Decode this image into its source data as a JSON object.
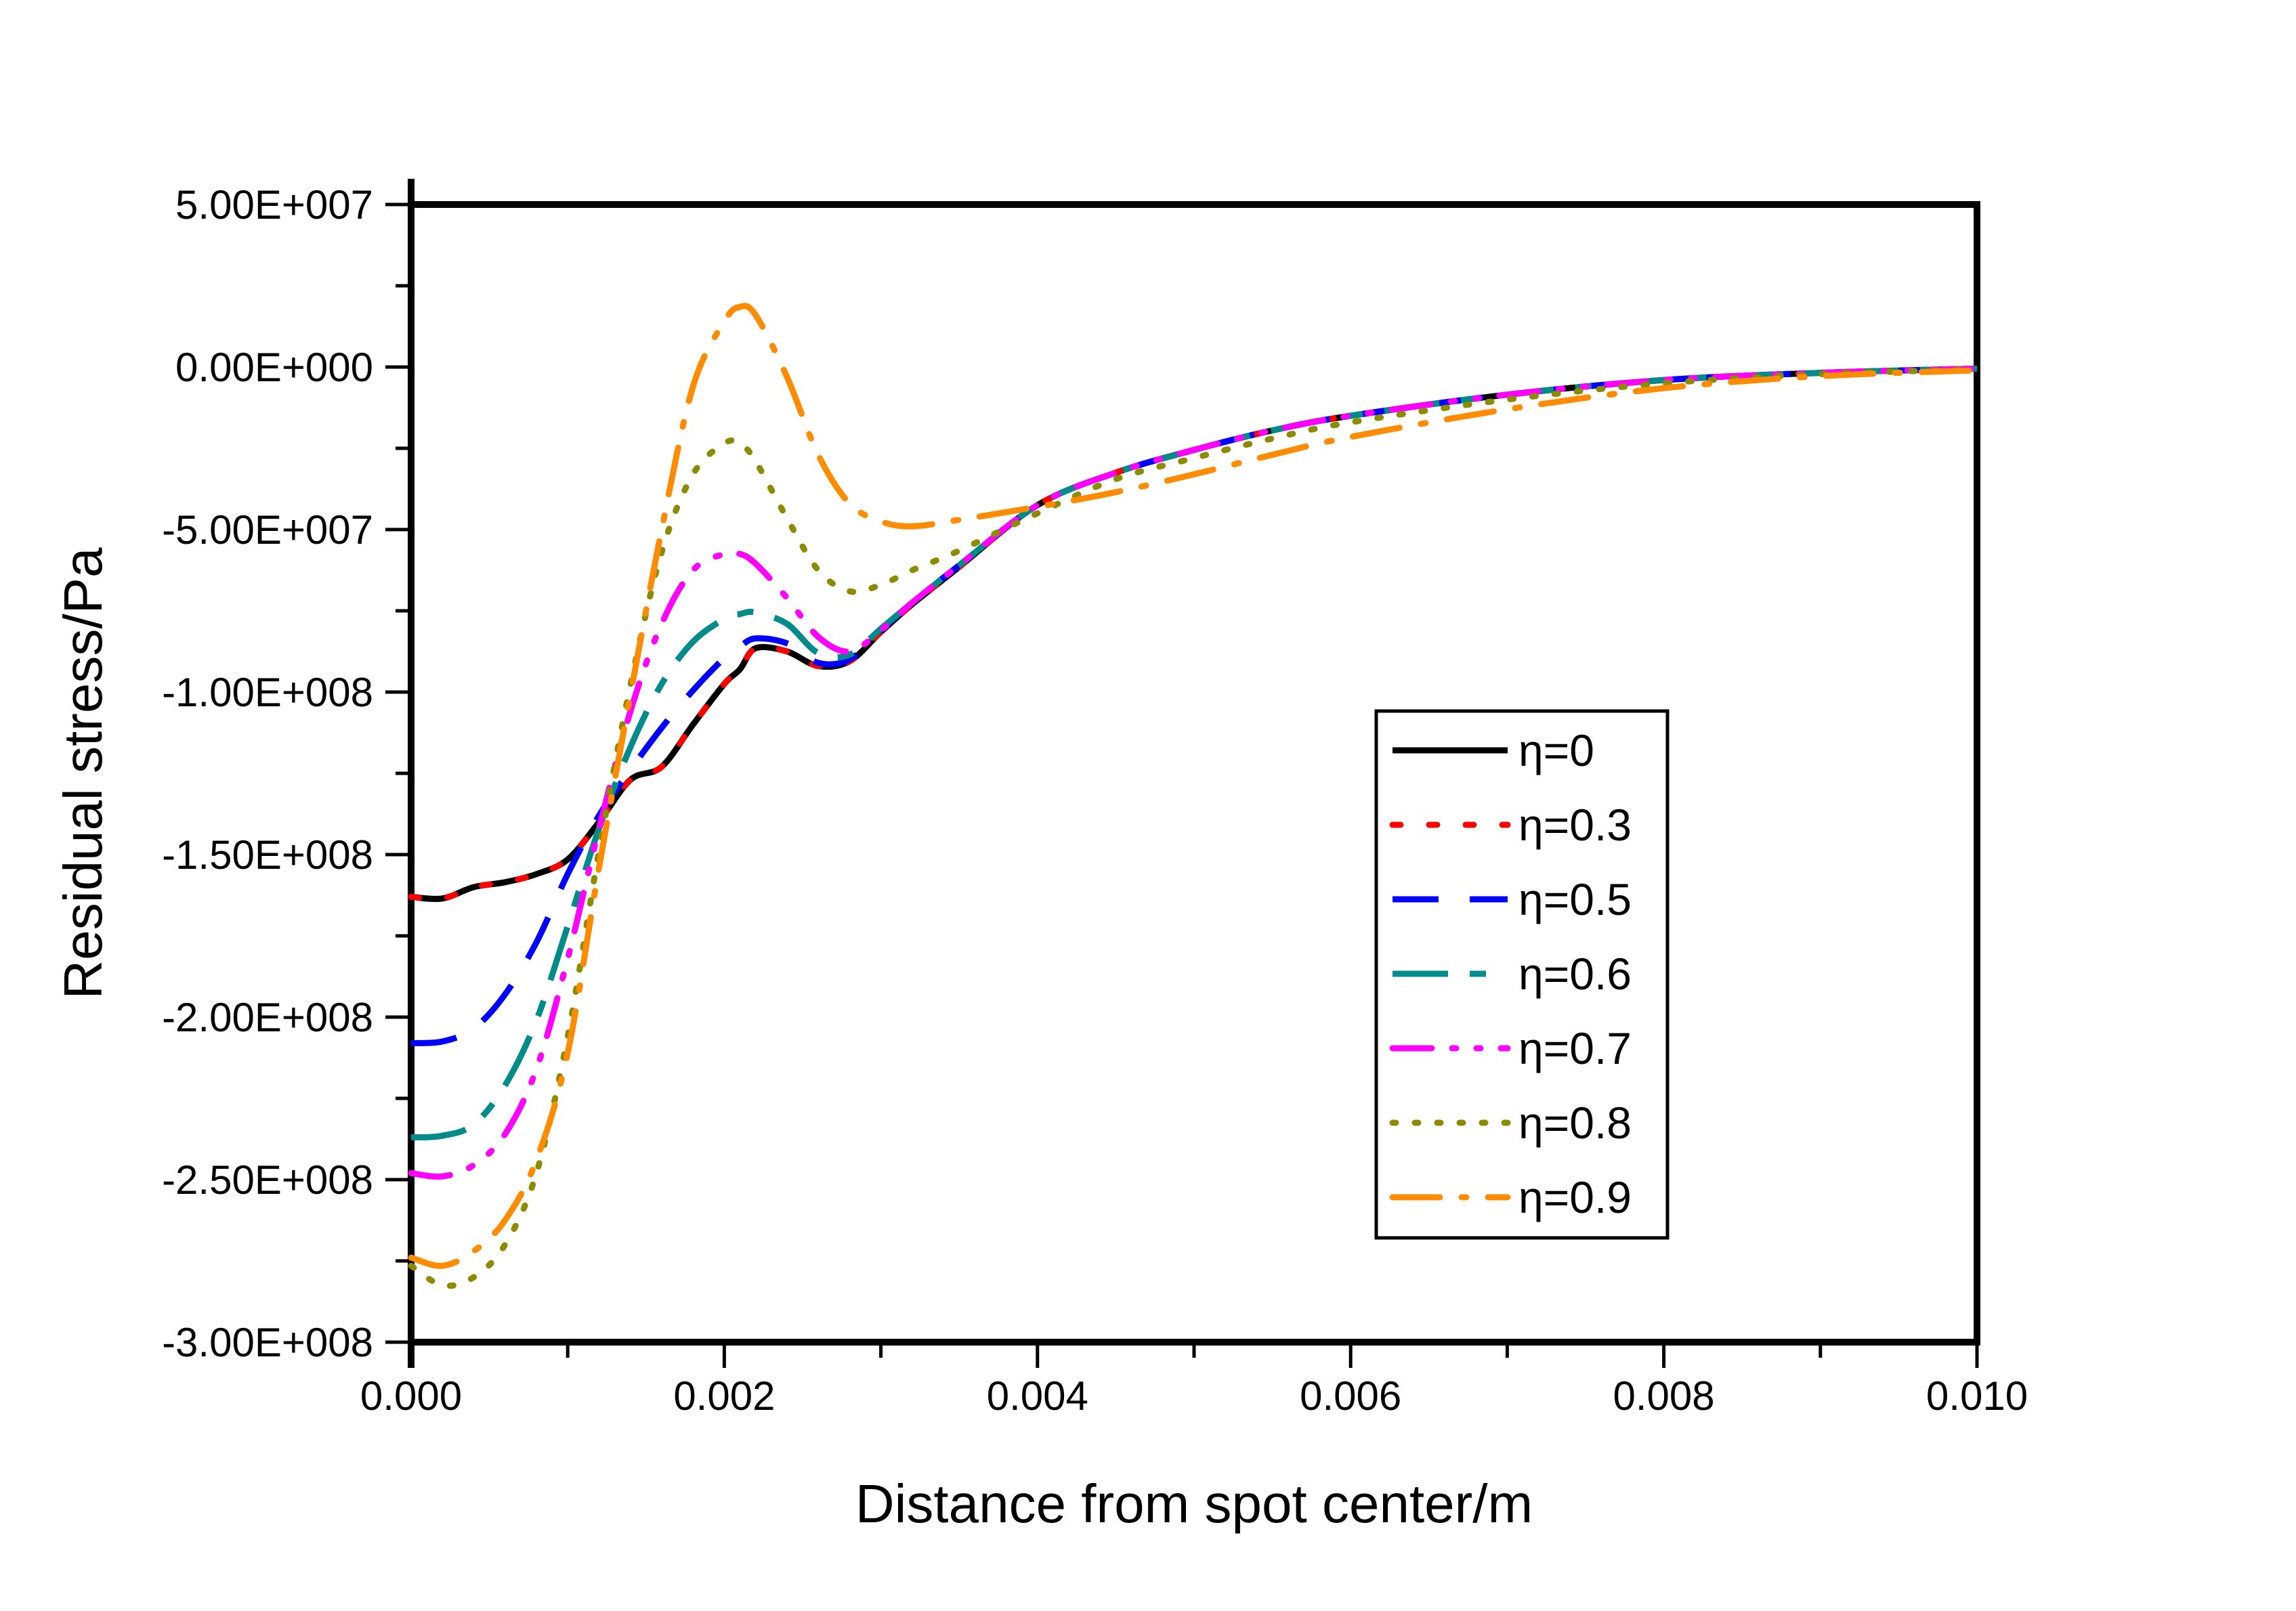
{
  "figure": {
    "background": "#ffffff",
    "frame_color": "#000000"
  },
  "chart_data": {
    "type": "line",
    "title": "",
    "xlabel": "Distance from spot center/m",
    "ylabel": "Residual stress/Pa",
    "xlim": [
      0,
      0.01
    ],
    "ylim": [
      -300000000.0,
      50000000.0
    ],
    "grid": false,
    "legend_position": "inside-right",
    "x_major_ticks": [
      {
        "value": 0.0,
        "label": "0.000"
      },
      {
        "value": 0.002,
        "label": "0.002"
      },
      {
        "value": 0.004,
        "label": "0.004"
      },
      {
        "value": 0.006,
        "label": "0.006"
      },
      {
        "value": 0.008,
        "label": "0.008"
      },
      {
        "value": 0.01,
        "label": "0.010"
      }
    ],
    "x_minor_ticks": [
      0.001,
      0.003,
      0.005,
      0.007,
      0.009
    ],
    "y_major_ticks": [
      {
        "value": 50000000.0,
        "label": "5.00E+007"
      },
      {
        "value": 0.0,
        "label": "0.00E+000"
      },
      {
        "value": -50000000.0,
        "label": "-5.00E+007"
      },
      {
        "value": -100000000.0,
        "label": "-1.00E+008"
      },
      {
        "value": -150000000.0,
        "label": "-1.50E+008"
      },
      {
        "value": -200000000.0,
        "label": "-2.00E+008"
      },
      {
        "value": -250000000.0,
        "label": "-2.50E+008"
      },
      {
        "value": -300000000.0,
        "label": "-3.00E+008"
      }
    ],
    "y_minor_ticks": [
      25000000.0,
      -25000000.0,
      -75000000.0,
      -125000000.0,
      -175000000.0,
      -225000000.0,
      -275000000.0
    ],
    "x": [
      0,
      0.0002,
      0.0004,
      0.0006,
      0.0008,
      0.001,
      0.0012,
      0.0014,
      0.0016,
      0.0018,
      0.002,
      0.0021,
      0.0022,
      0.0024,
      0.0026,
      0.0028,
      0.003,
      0.0032,
      0.0035,
      0.004,
      0.0045,
      0.005,
      0.0055,
      0.006,
      0.007,
      0.008,
      0.009,
      0.01
    ],
    "series": [
      {
        "name": "η=0",
        "color": "#000000",
        "line_style": "solid",
        "values": [
          -163000000.0,
          -163500000.0,
          -160000000.0,
          -158500000.0,
          -156000000.0,
          -151500000.0,
          -140000000.0,
          -127000000.0,
          -123000000.0,
          -110000000.0,
          -97500000.0,
          -93000000.0,
          -86500000.0,
          -87500000.0,
          -92000000.0,
          -90500000.0,
          -81500000.0,
          -73000000.0,
          -61500000.0,
          -42500000.0,
          -32500000.0,
          -25500000.0,
          -19500000.0,
          -15000000.0,
          -8500000.0,
          -4000000.0,
          -1800000.0,
          -500000.0
        ]
      },
      {
        "name": "η=0.3",
        "color": "#ff0000",
        "line_style": "dot",
        "values": [
          -163000000.0,
          -163500000.0,
          -160000000.0,
          -158500000.0,
          -156000000.0,
          -151500000.0,
          -140000000.0,
          -127000000.0,
          -123000000.0,
          -110000000.0,
          -97500000.0,
          -93000000.0,
          -86500000.0,
          -87500000.0,
          -92000000.0,
          -90500000.0,
          -81500000.0,
          -73000000.0,
          -61500000.0,
          -42500000.0,
          -32500000.0,
          -25500000.0,
          -19500000.0,
          -15000000.0,
          -8500000.0,
          -4000000.0,
          -1800000.0,
          -500000.0
        ]
      },
      {
        "name": "η=0.5",
        "color": "#0000ff",
        "line_style": "dash",
        "values": [
          -208000000.0,
          -207500000.0,
          -203500000.0,
          -193000000.0,
          -177000000.0,
          -156000000.0,
          -138000000.0,
          -124000000.0,
          -111000000.0,
          -99500000.0,
          -89500000.0,
          -86000000.0,
          -83500000.0,
          -85000000.0,
          -91000000.0,
          -90000000.0,
          -81000000.0,
          -72500000.0,
          -61000000.0,
          -42500000.0,
          -32500000.0,
          -25500000.0,
          -19500000.0,
          -15000000.0,
          -8500000.0,
          -4000000.0,
          -1800000.0,
          -500000.0
        ]
      },
      {
        "name": "η=0.6",
        "color": "#008b8b",
        "line_style": "dashdot-long",
        "values": [
          -237000000.0,
          -236500000.0,
          -233000000.0,
          -221000000.0,
          -201000000.0,
          -172000000.0,
          -142000000.0,
          -117000000.0,
          -97500000.0,
          -84500000.0,
          -77500000.0,
          -76000000.0,
          -75500000.0,
          -79000000.0,
          -88000000.0,
          -88500000.0,
          -80500000.0,
          -72500000.0,
          -61000000.0,
          -42500000.0,
          -32500000.0,
          -25500000.0,
          -19500000.0,
          -15000000.0,
          -8500000.0,
          -4000000.0,
          -1800000.0,
          -500000.0
        ]
      },
      {
        "name": "η=0.7",
        "color": "#ff00ff",
        "line_style": "dashdotdot",
        "values": [
          -248000000.0,
          -249000000.0,
          -245500000.0,
          -236000000.0,
          -216000000.0,
          -182000000.0,
          -142000000.0,
          -106000000.0,
          -79000000.0,
          -62500000.0,
          -57500000.0,
          -57500000.0,
          -60500000.0,
          -71000000.0,
          -83000000.0,
          -87500000.0,
          -81000000.0,
          -72500000.0,
          -61000000.0,
          -42500000.0,
          -32500000.0,
          -25500000.0,
          -19500000.0,
          -15000000.0,
          -8500000.0,
          -4000000.0,
          -1800000.0,
          -500000.0
        ]
      },
      {
        "name": "η=0.8",
        "color": "#8b8b00",
        "line_style": "densedot",
        "values": [
          -276500000.0,
          -282500000.0,
          -280000000.0,
          -270000000.0,
          -248000000.0,
          -206000000.0,
          -149000000.0,
          -98000000.0,
          -57000000.0,
          -33000000.0,
          -23500000.0,
          -23500000.0,
          -29000000.0,
          -46500000.0,
          -62500000.0,
          -69000000.0,
          -67000000.0,
          -62500000.0,
          -56500000.0,
          -45000000.0,
          -34500000.0,
          -28000000.0,
          -22000000.0,
          -17000000.0,
          -10000000.0,
          -5000000.0,
          -2200000.0,
          -700000.0
        ]
      },
      {
        "name": "η=0.9",
        "color": "#ff8c00",
        "line_style": "dashdot",
        "values": [
          -274000000.0,
          -276500000.0,
          -272000000.0,
          -262500000.0,
          -244000000.0,
          -211000000.0,
          -154000000.0,
          -101000000.0,
          -50000000.0,
          -6000000.0,
          14000000.0,
          18500000.0,
          16000000.0,
          -3000000.0,
          -27000000.0,
          -42000000.0,
          -47500000.0,
          -49000000.0,
          -47000000.0,
          -43000000.0,
          -38500000.0,
          -33000000.0,
          -27000000.0,
          -21500000.0,
          -13000000.0,
          -6500000.0,
          -2800000.0,
          -1000000.0
        ]
      }
    ]
  }
}
